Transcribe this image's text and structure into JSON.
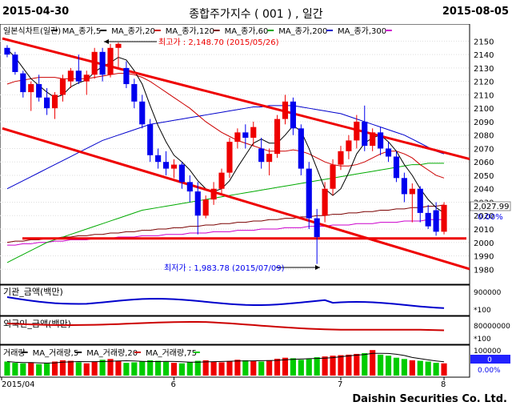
{
  "header": {
    "start_date": "2015-04-30",
    "title": "종합주가지수 ( 001 ) , 일간",
    "end_date": "2015-08-05"
  },
  "footer": {
    "brand": "Daishin Securities Co. Ltd."
  },
  "price_panel": {
    "legend": [
      {
        "label": "일본식차트(일간)",
        "color": "#000000"
      },
      {
        "label": "MA_종가,5",
        "color": "#000000"
      },
      {
        "label": "MA_종가,20",
        "color": "#cc0000"
      },
      {
        "label": "MA_종가,120",
        "color": "#7a0000"
      },
      {
        "label": "MA_종가,60",
        "color": "#00aa00"
      },
      {
        "label": "MA_종가,200",
        "color": "#0000cc"
      },
      {
        "label": "MA_종가,300",
        "color": "#cc00cc"
      }
    ],
    "annotation_high": "최고가 : 2,148.70 (2015/05/26)",
    "annotation_low": "최저가 : 1,983.78 (2015/07/09)",
    "last_price_tag": "2,027.99",
    "change_tag": "0.00%"
  },
  "institution_panel": {
    "label": "기관_금액(백만)",
    "axis_tick": "900000",
    "unit_tag": "*100"
  },
  "foreign_panel": {
    "label": "외국인_금액(백만)",
    "axis_tick": "80000000",
    "unit_tag": "*100"
  },
  "volume_panel": {
    "legend": [
      {
        "label": "거래량",
        "color": "#000000"
      },
      {
        "label": "MA_거래량,5",
        "color": "#000000"
      },
      {
        "label": "MA_거래량,20",
        "color": "#cc0000"
      },
      {
        "label": "MA_거래량,75",
        "color": "#00cc00"
      }
    ],
    "axis_tick": "100000",
    "value_tag": "0",
    "change_tag": "0.00%"
  },
  "x_axis": {
    "labels": [
      "2015/04",
      "6",
      "7",
      "8"
    ]
  },
  "colors": {
    "up": "#ee0000",
    "down": "#0000ee",
    "grid": "#dddddd",
    "volume_down": "#00cc00"
  },
  "chart_data": {
    "type": "candlestick",
    "title": "종합주가지수 ( 001 ) , 일간",
    "y_ticks": [
      1980,
      1990,
      2000,
      2010,
      2020,
      2030,
      2040,
      2050,
      2060,
      2070,
      2080,
      2090,
      2100,
      2110,
      2120,
      2130,
      2140,
      2150
    ],
    "ylim": [
      1973,
      2158
    ],
    "month_labels": [
      "2015/04",
      "6",
      "7",
      "8"
    ],
    "candles": [
      [
        2145,
        2147,
        2138,
        2140
      ],
      [
        2140,
        2142,
        2125,
        2127
      ],
      [
        2126,
        2128,
        2108,
        2112
      ],
      [
        2112,
        2120,
        2098,
        2118
      ],
      [
        2118,
        2125,
        2105,
        2108
      ],
      [
        2108,
        2115,
        2095,
        2100
      ],
      [
        2100,
        2112,
        2092,
        2110
      ],
      [
        2110,
        2125,
        2105,
        2122
      ],
      [
        2120,
        2130,
        2115,
        2128
      ],
      [
        2128,
        2140,
        2118,
        2120
      ],
      [
        2120,
        2128,
        2110,
        2125
      ],
      [
        2125,
        2145,
        2122,
        2142
      ],
      [
        2142,
        2145,
        2120,
        2125
      ],
      [
        2125,
        2148,
        2123,
        2145
      ],
      [
        2145,
        2149,
        2130,
        2148
      ],
      [
        2130,
        2135,
        2115,
        2118
      ],
      [
        2118,
        2122,
        2100,
        2105
      ],
      [
        2105,
        2110,
        2085,
        2088
      ],
      [
        2088,
        2092,
        2060,
        2065
      ],
      [
        2065,
        2070,
        2055,
        2060
      ],
      [
        2060,
        2068,
        2050,
        2055
      ],
      [
        2055,
        2062,
        2048,
        2058
      ],
      [
        2058,
        2060,
        2040,
        2045
      ],
      [
        2045,
        2050,
        2030,
        2038
      ],
      [
        2038,
        2045,
        2006,
        2020
      ],
      [
        2020,
        2035,
        2018,
        2032
      ],
      [
        2032,
        2045,
        2028,
        2040
      ],
      [
        2040,
        2055,
        2035,
        2052
      ],
      [
        2052,
        2078,
        2048,
        2075
      ],
      [
        2075,
        2085,
        2070,
        2082
      ],
      [
        2082,
        2088,
        2070,
        2078
      ],
      [
        2078,
        2090,
        2072,
        2086
      ],
      [
        2070,
        2078,
        2055,
        2060
      ],
      [
        2060,
        2070,
        2050,
        2066
      ],
      [
        2066,
        2095,
        2063,
        2092
      ],
      [
        2092,
        2110,
        2088,
        2105
      ],
      [
        2105,
        2108,
        2080,
        2085
      ],
      [
        2085,
        2088,
        2050,
        2055
      ],
      [
        2055,
        2060,
        2010,
        2018
      ],
      [
        2018,
        2025,
        1984,
        2004
      ],
      [
        2020,
        2045,
        2015,
        2040
      ],
      [
        2040,
        2062,
        2035,
        2058
      ],
      [
        2058,
        2072,
        2054,
        2068
      ],
      [
        2068,
        2080,
        2062,
        2076
      ],
      [
        2076,
        2095,
        2070,
        2090
      ],
      [
        2090,
        2102,
        2068,
        2072
      ],
      [
        2072,
        2085,
        2068,
        2082
      ],
      [
        2082,
        2086,
        2065,
        2070
      ],
      [
        2070,
        2075,
        2060,
        2064
      ],
      [
        2064,
        2068,
        2045,
        2048
      ],
      [
        2048,
        2052,
        2030,
        2036
      ],
      [
        2036,
        2044,
        2015,
        2040
      ],
      [
        2040,
        2042,
        2015,
        2022
      ],
      [
        2022,
        2028,
        2010,
        2012
      ],
      [
        2024,
        2030,
        2005,
        2008
      ],
      [
        2008,
        2030,
        2006,
        2028
      ]
    ],
    "volume": [
      55,
      50,
      48,
      52,
      45,
      50,
      55,
      60,
      58,
      52,
      48,
      55,
      62,
      65,
      58,
      50,
      52,
      55,
      60,
      58,
      54,
      50,
      48,
      52,
      58,
      60,
      55,
      52,
      57,
      62,
      60,
      58,
      55,
      60,
      66,
      70,
      68,
      62,
      65,
      72,
      75,
      78,
      80,
      82,
      85,
      88,
      100,
      82,
      78,
      70,
      65,
      60,
      58,
      55,
      50,
      48
    ],
    "ma5": [
      2144,
      2138,
      2130,
      2122,
      2117,
      2112,
      2108,
      2110,
      2116,
      2119,
      2121,
      2127,
      2131,
      2134,
      2138,
      2136,
      2128,
      2118,
      2102,
      2087,
      2075,
      2065,
      2060,
      2054,
      2046,
      2040,
      2038,
      2040,
      2046,
      2056,
      2065,
      2074,
      2077,
      2074,
      2074,
      2080,
      2087,
      2083,
      2070,
      2055,
      2040,
      2035,
      2040,
      2052,
      2066,
      2074,
      2078,
      2080,
      2075,
      2068,
      2058,
      2050,
      2040,
      2032,
      2026,
      2022
    ],
    "ma20": [
      2118,
      2120,
      2121,
      2122,
      2123,
      2123,
      2123,
      2122,
      2122,
      2122,
      2122,
      2123,
      2124,
      2125,
      2126,
      2126,
      2125,
      2123,
      2120,
      2116,
      2112,
      2108,
      2104,
      2100,
      2095,
      2090,
      2086,
      2082,
      2079,
      2076,
      2074,
      2072,
      2070,
      2068,
      2068,
      2068,
      2069,
      2068,
      2066,
      2063,
      2060,
      2058,
      2057,
      2057,
      2058,
      2060,
      2063,
      2066,
      2068,
      2068,
      2066,
      2063,
      2058,
      2054,
      2050,
      2048
    ],
    "ma60": [
      1985,
      1988,
      1991,
      1994,
      1997,
      2000,
      2002,
      2004,
      2006,
      2008,
      2010,
      2012,
      2014,
      2016,
      2018,
      2020,
      2022,
      2024,
      2025,
      2026,
      2027,
      2028,
      2029,
      2030,
      2031,
      2032,
      2033,
      2034,
      2035,
      2036,
      2037,
      2038,
      2039,
      2040,
      2041,
      2042,
      2043,
      2044,
      2045,
      2046,
      2047,
      2048,
      2049,
      2050,
      2051,
      2052,
      2053,
      2054,
      2055,
      2056,
      2057,
      2058,
      2058,
      2059,
      2059,
      2059
    ],
    "ma120": [
      2000,
      2001,
      2001,
      2002,
      2002,
      2003,
      2003,
      2004,
      2004,
      2005,
      2005,
      2006,
      2006,
      2007,
      2007,
      2008,
      2008,
      2009,
      2009,
      2010,
      2010,
      2011,
      2011,
      2012,
      2012,
      2013,
      2013,
      2014,
      2014,
      2015,
      2015,
      2016,
      2016,
      2017,
      2017,
      2018,
      2018,
      2019,
      2019,
      2020,
      2020,
      2021,
      2021,
      2022,
      2022,
      2023,
      2023,
      2024,
      2024,
      2025,
      2025,
      2026,
      2026,
      2027,
      2027,
      2028
    ],
    "ma200": [
      2040,
      2043,
      2046,
      2049,
      2052,
      2055,
      2058,
      2061,
      2064,
      2067,
      2070,
      2073,
      2076,
      2078,
      2080,
      2082,
      2084,
      2086,
      2088,
      2089,
      2090,
      2091,
      2092,
      2093,
      2094,
      2095,
      2096,
      2097,
      2098,
      2099,
      2100,
      2101,
      2101,
      2102,
      2102,
      2102,
      2102,
      2101,
      2100,
      2099,
      2098,
      2097,
      2096,
      2094,
      2092,
      2090,
      2088,
      2086,
      2084,
      2082,
      2080,
      2077,
      2074,
      2071,
      2068,
      2066
    ],
    "ma300": [
      1998,
      1998,
      1999,
      1999,
      2000,
      2000,
      2001,
      2001,
      2002,
      2002,
      2002,
      2003,
      2003,
      2003,
      2004,
      2004,
      2004,
      2005,
      2005,
      2005,
      2006,
      2006,
      2006,
      2007,
      2007,
      2007,
      2008,
      2008,
      2008,
      2009,
      2009,
      2009,
      2010,
      2010,
      2010,
      2011,
      2011,
      2011,
      2012,
      2012,
      2012,
      2013,
      2013,
      2013,
      2014,
      2014,
      2014,
      2015,
      2015,
      2015,
      2016,
      2016,
      2016,
      2017,
      2017,
      2017
    ],
    "trend_lines": [
      {
        "name": "upper",
        "from": [
          0,
          2152
        ],
        "to": [
          55,
          2068
        ]
      },
      {
        "name": "lower",
        "from": [
          0,
          2085
        ],
        "to": [
          55,
          1987
        ]
      },
      {
        "name": "support",
        "from": [
          0,
          2003
        ],
        "to": [
          55,
          2003
        ]
      }
    ]
  }
}
